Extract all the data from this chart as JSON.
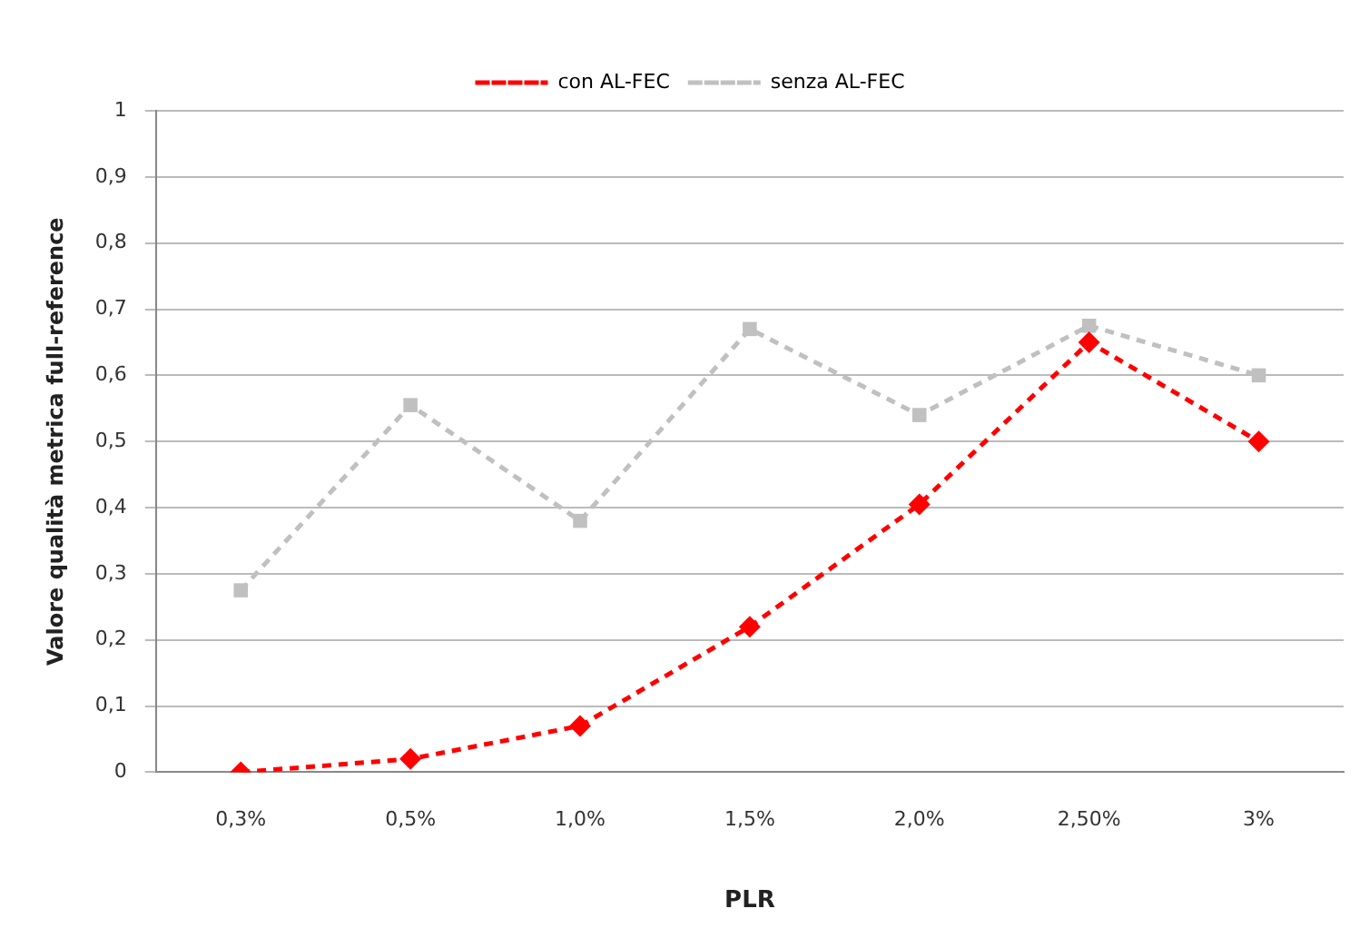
{
  "chart_data": {
    "type": "line",
    "xlabel": "PLR",
    "ylabel": "Valore qualità metrica full-reference",
    "categories": [
      "0,3%",
      "0,5%",
      "1,0%",
      "1,5%",
      "2,0%",
      "2,50%",
      "3%"
    ],
    "series": [
      {
        "name": "con AL-FEC",
        "color": "#ff0000",
        "marker": "diamond",
        "values": [
          0,
          0.02,
          0.07,
          0.22,
          0.405,
          0.65,
          0.5
        ]
      },
      {
        "name": "senza AL-FEC",
        "color": "#c0c0c0",
        "marker": "square",
        "values": [
          0.275,
          0.555,
          0.38,
          0.67,
          0.54,
          0.675,
          0.6
        ]
      }
    ],
    "ylim": [
      0,
      1
    ],
    "yticks": [
      0,
      {
        "value": 0.1,
        "label": "0,1"
      },
      {
        "value": 0.2,
        "label": "0,2"
      },
      {
        "value": 0.3,
        "label": "0,3"
      },
      {
        "value": 0.4,
        "label": "0,4"
      },
      {
        "value": 0.5,
        "label": "0,5"
      },
      {
        "value": 0.6,
        "label": "0,6"
      },
      {
        "value": 0.7,
        "label": "0,7"
      },
      {
        "value": 0.8,
        "label": "0,8"
      },
      {
        "value": 0.9,
        "label": "0,9"
      },
      1
    ],
    "grid": "y",
    "legend": "top",
    "line_style": "dashed"
  }
}
